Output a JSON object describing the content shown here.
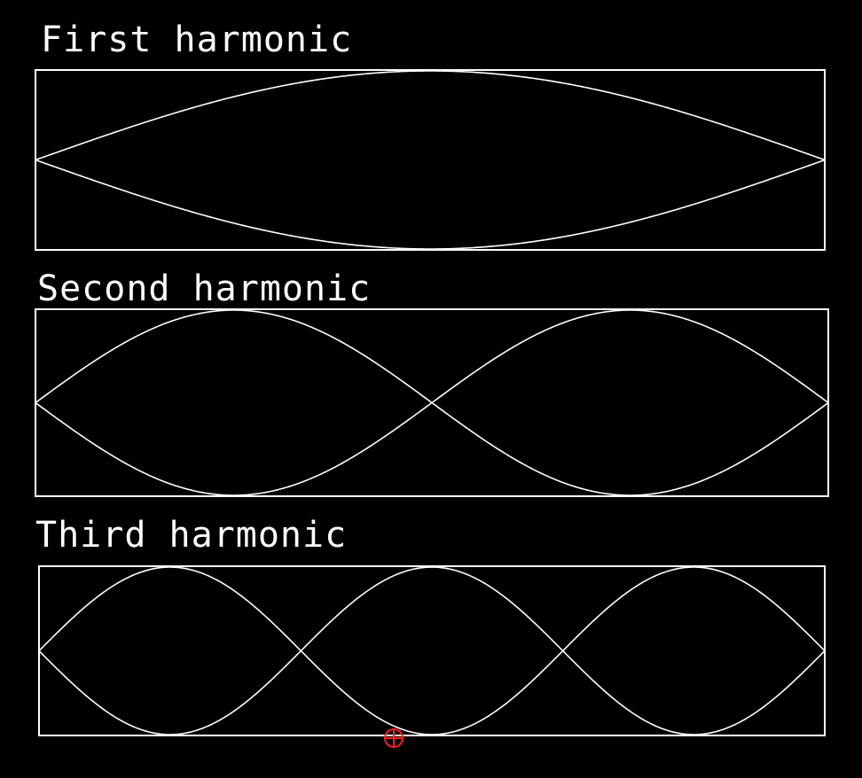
{
  "panels": [
    {
      "title": "First harmonic",
      "harmonic": 1
    },
    {
      "title": "Second harmonic",
      "harmonic": 2
    },
    {
      "title": "Third harmonic",
      "harmonic": 3
    }
  ],
  "colors": {
    "background": "#000000",
    "line": "#ffffff",
    "cursor": "#ff2020"
  },
  "cursor_icon": "crosshair-circle-icon"
}
